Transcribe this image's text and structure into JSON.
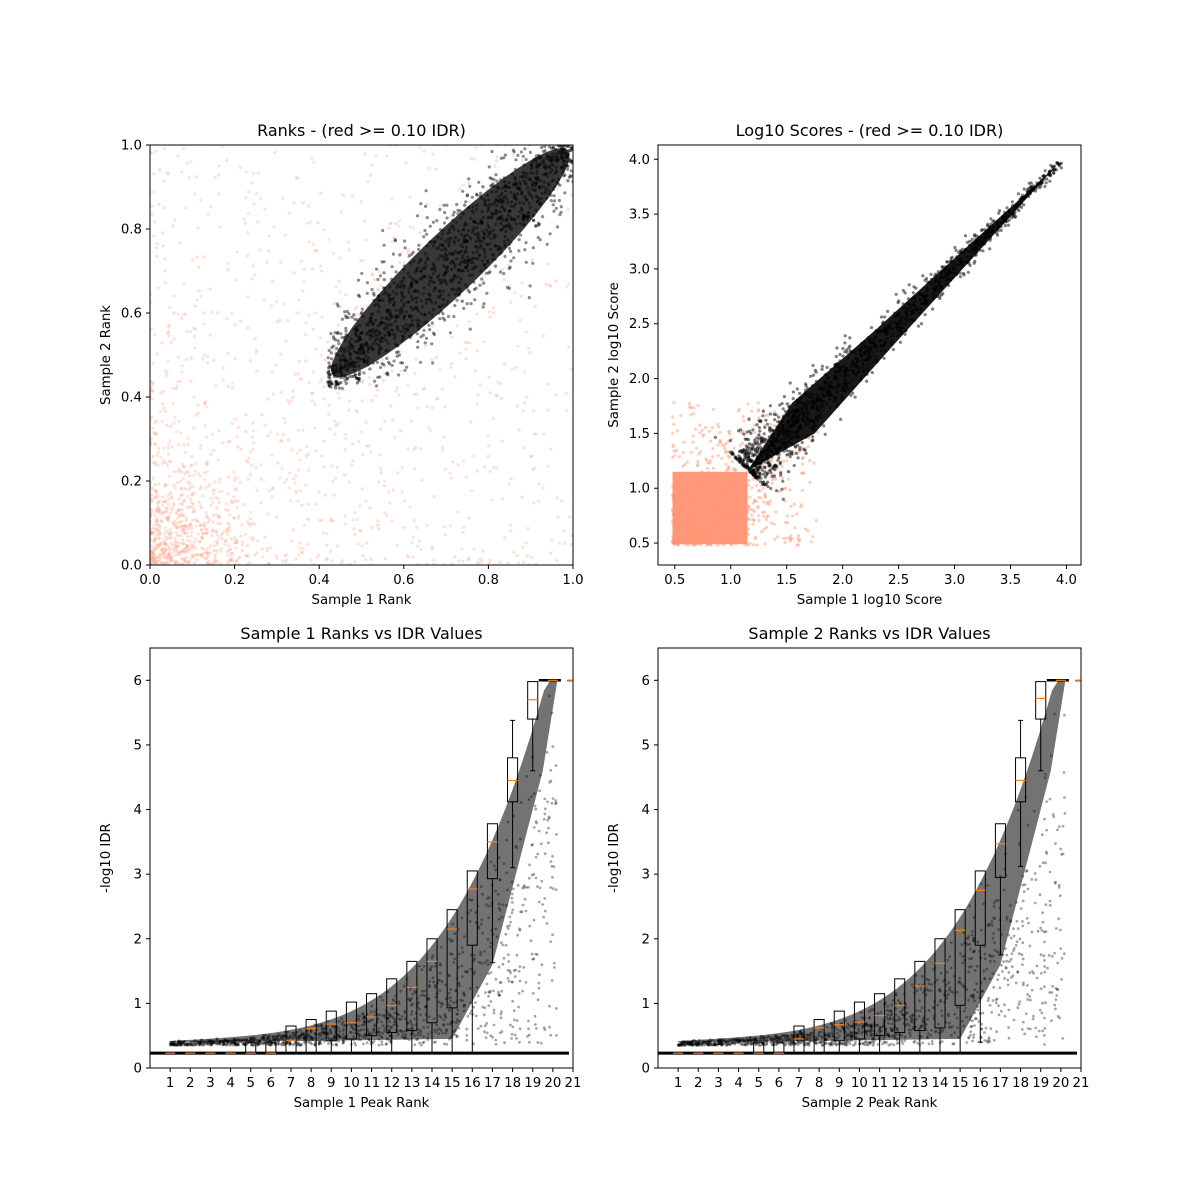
{
  "figure": {
    "background": "#ffffff"
  },
  "colors": {
    "below_threshold": "#ff9473",
    "above_threshold": "#000000",
    "median_line": "#ff7f0e",
    "box_edge": "#000000"
  },
  "chart_data": [
    {
      "type": "scatter",
      "title": "Ranks - (red >= 0.10 IDR)",
      "xlabel": "Sample 1 Rank",
      "ylabel": "Sample 2 Rank",
      "xlim": [
        0.0,
        1.0
      ],
      "ylim": [
        0.0,
        1.0
      ],
      "xticks": [
        "0.0",
        "0.2",
        "0.4",
        "0.6",
        "0.8",
        "1.0"
      ],
      "yticks": [
        "0.0",
        "0.2",
        "0.4",
        "0.6",
        "0.8",
        "1.0"
      ],
      "grid": false,
      "series": [
        {
          "group": "IDR >= 0.10",
          "color": "#ff9473",
          "description_of_shape": "dense cloud concentrated near origin, spreading over whole unit square",
          "x_center": 0.3,
          "y_center": 0.3
        },
        {
          "group": "IDR < 0.10",
          "color": "#000000",
          "ellipse": {
            "start": [
              0.43,
              0.43
            ],
            "end": [
              1.0,
              1.0
            ],
            "center": [
              0.71,
              0.72
            ],
            "semi_major": 0.42,
            "semi_minor": 0.075,
            "angle_deg": 44
          }
        }
      ]
    },
    {
      "type": "scatter",
      "title": "Log10 Scores - (red >= 0.10 IDR)",
      "xlabel": "Sample 1 log10 Score",
      "ylabel": "Sample 2 log10 Score",
      "xlim": [
        0.35,
        4.13
      ],
      "ylim": [
        0.3,
        4.13
      ],
      "xticks": [
        "0.5",
        "1.0",
        "1.5",
        "2.0",
        "2.5",
        "3.0",
        "3.5",
        "4.0"
      ],
      "yticks": [
        "0.5",
        "1.0",
        "1.5",
        "2.0",
        "2.5",
        "3.0",
        "3.5",
        "4.0"
      ],
      "grid": false,
      "series": [
        {
          "group": "IDR >= 0.10",
          "color": "#ff9473",
          "x_range": [
            0.48,
            1.9
          ],
          "y_range": [
            0.48,
            1.9
          ]
        },
        {
          "group": "IDR < 0.10",
          "color": "#000000",
          "band_start": [
            1.15,
            1.17
          ],
          "band_end": [
            3.95,
            3.96
          ]
        }
      ]
    },
    {
      "type": "box",
      "title": "Sample 1 Ranks vs IDR Values",
      "xlabel": "Sample 1 Peak Rank",
      "ylabel": "-log10 IDR",
      "xlim": [
        0,
        21
      ],
      "ylim": [
        0,
        6.5
      ],
      "xticks": [
        "1",
        "2",
        "3",
        "4",
        "5",
        "6",
        "7",
        "8",
        "9",
        "10",
        "11",
        "12",
        "13",
        "14",
        "15",
        "16",
        "17",
        "18",
        "19",
        "20",
        "21"
      ],
      "yticks": [
        "0",
        "1",
        "2",
        "3",
        "4",
        "5",
        "6"
      ],
      "grid": false,
      "boxes": [
        {
          "x": 1,
          "q1": 0.23,
          "median": 0.23,
          "q3": 0.23,
          "whisker_low": 0.23,
          "whisker_high": 0.23
        },
        {
          "x": 2,
          "q1": 0.23,
          "median": 0.23,
          "q3": 0.23,
          "whisker_low": 0.23,
          "whisker_high": 0.23
        },
        {
          "x": 3,
          "q1": 0.23,
          "median": 0.23,
          "q3": 0.23,
          "whisker_low": 0.23,
          "whisker_high": 0.23
        },
        {
          "x": 4,
          "q1": 0.23,
          "median": 0.23,
          "q3": 0.23,
          "whisker_low": 0.23,
          "whisker_high": 0.23
        },
        {
          "x": 5,
          "q1": 0.23,
          "median": 0.23,
          "q3": 0.39,
          "whisker_low": 0.23,
          "whisker_high": 0.39
        },
        {
          "x": 6,
          "q1": 0.23,
          "median": 0.23,
          "q3": 0.4,
          "whisker_low": 0.23,
          "whisker_high": 0.4
        },
        {
          "x": 7,
          "q1": 0.23,
          "median": 0.43,
          "q3": 0.65,
          "whisker_low": 0.23,
          "whisker_high": 0.65
        },
        {
          "x": 8,
          "q1": 0.23,
          "median": 0.61,
          "q3": 0.75,
          "whisker_low": 0.23,
          "whisker_high": 0.75
        },
        {
          "x": 9,
          "q1": 0.42,
          "median": 0.68,
          "q3": 0.88,
          "whisker_low": 0.23,
          "whisker_high": 0.88
        },
        {
          "x": 10,
          "q1": 0.45,
          "median": 0.7,
          "q3": 1.02,
          "whisker_low": 0.23,
          "whisker_high": 1.02
        },
        {
          "x": 11,
          "q1": 0.5,
          "median": 0.79,
          "q3": 1.15,
          "whisker_low": 0.23,
          "whisker_high": 1.15
        },
        {
          "x": 12,
          "q1": 0.55,
          "median": 0.97,
          "q3": 1.38,
          "whisker_low": 0.23,
          "whisker_high": 1.38
        },
        {
          "x": 13,
          "q1": 0.58,
          "median": 1.25,
          "q3": 1.65,
          "whisker_low": 0.23,
          "whisker_high": 1.65
        },
        {
          "x": 14,
          "q1": 0.7,
          "median": 1.65,
          "q3": 2.0,
          "whisker_low": 0.23,
          "whisker_high": 2.0
        },
        {
          "x": 15,
          "q1": 0.93,
          "median": 2.15,
          "q3": 2.45,
          "whisker_low": 0.23,
          "whisker_high": 2.45
        },
        {
          "x": 16,
          "q1": 1.9,
          "median": 2.77,
          "q3": 3.05,
          "whisker_low": 0.23,
          "whisker_high": 3.05
        },
        {
          "x": 17,
          "q1": 2.93,
          "median": 3.5,
          "q3": 3.78,
          "whisker_low": 1.63,
          "whisker_high": 3.78
        },
        {
          "x": 18,
          "q1": 4.12,
          "median": 4.45,
          "q3": 4.8,
          "whisker_low": 3.1,
          "whisker_high": 5.38
        },
        {
          "x": 19,
          "q1": 5.4,
          "median": 5.7,
          "q3": 5.98,
          "whisker_low": 4.6,
          "whisker_high": 5.98
        },
        {
          "x": 20,
          "q1": 6.0,
          "median": 6.0,
          "q3": 6.0,
          "whisker_low": 6.0,
          "whisker_high": 6.0
        },
        {
          "x": 21,
          "q1": 6.0,
          "median": 6.0,
          "q3": 6.0,
          "whisker_low": 6.0,
          "whisker_high": 6.0
        }
      ]
    },
    {
      "type": "box",
      "title": "Sample 2 Ranks vs IDR Values",
      "xlabel": "Sample 2 Peak Rank",
      "ylabel": "-log10 IDR",
      "xlim": [
        0,
        21
      ],
      "ylim": [
        0,
        6.5
      ],
      "xticks": [
        "1",
        "2",
        "3",
        "4",
        "5",
        "6",
        "7",
        "8",
        "9",
        "10",
        "11",
        "12",
        "13",
        "14",
        "15",
        "16",
        "17",
        "18",
        "19",
        "20",
        "21"
      ],
      "yticks": [
        "0",
        "1",
        "2",
        "3",
        "4",
        "5",
        "6"
      ],
      "grid": false,
      "boxes": [
        {
          "x": 1,
          "q1": 0.23,
          "median": 0.23,
          "q3": 0.23,
          "whisker_low": 0.23,
          "whisker_high": 0.23
        },
        {
          "x": 2,
          "q1": 0.23,
          "median": 0.23,
          "q3": 0.23,
          "whisker_low": 0.23,
          "whisker_high": 0.23
        },
        {
          "x": 3,
          "q1": 0.23,
          "median": 0.23,
          "q3": 0.23,
          "whisker_low": 0.23,
          "whisker_high": 0.23
        },
        {
          "x": 4,
          "q1": 0.23,
          "median": 0.23,
          "q3": 0.23,
          "whisker_low": 0.23,
          "whisker_high": 0.23
        },
        {
          "x": 5,
          "q1": 0.23,
          "median": 0.23,
          "q3": 0.39,
          "whisker_low": 0.23,
          "whisker_high": 0.39
        },
        {
          "x": 6,
          "q1": 0.23,
          "median": 0.23,
          "q3": 0.4,
          "whisker_low": 0.23,
          "whisker_high": 0.4
        },
        {
          "x": 7,
          "q1": 0.23,
          "median": 0.45,
          "q3": 0.65,
          "whisker_low": 0.23,
          "whisker_high": 0.65
        },
        {
          "x": 8,
          "q1": 0.23,
          "median": 0.62,
          "q3": 0.75,
          "whisker_low": 0.23,
          "whisker_high": 0.75
        },
        {
          "x": 9,
          "q1": 0.42,
          "median": 0.67,
          "q3": 0.88,
          "whisker_low": 0.23,
          "whisker_high": 0.88
        },
        {
          "x": 10,
          "q1": 0.45,
          "median": 0.71,
          "q3": 1.02,
          "whisker_low": 0.23,
          "whisker_high": 1.02
        },
        {
          "x": 11,
          "q1": 0.5,
          "median": 0.81,
          "q3": 1.15,
          "whisker_low": 0.23,
          "whisker_high": 1.15
        },
        {
          "x": 12,
          "q1": 0.55,
          "median": 0.97,
          "q3": 1.38,
          "whisker_low": 0.23,
          "whisker_high": 1.38
        },
        {
          "x": 13,
          "q1": 0.58,
          "median": 1.27,
          "q3": 1.65,
          "whisker_low": 0.23,
          "whisker_high": 1.65
        },
        {
          "x": 14,
          "q1": 0.62,
          "median": 1.62,
          "q3": 2.0,
          "whisker_low": 0.23,
          "whisker_high": 2.0
        },
        {
          "x": 15,
          "q1": 0.97,
          "median": 2.13,
          "q3": 2.45,
          "whisker_low": 0.23,
          "whisker_high": 2.45
        },
        {
          "x": 16,
          "q1": 1.9,
          "median": 2.75,
          "q3": 3.05,
          "whisker_low": 0.4,
          "whisker_high": 3.05
        },
        {
          "x": 17,
          "q1": 2.95,
          "median": 3.47,
          "q3": 3.78,
          "whisker_low": 1.75,
          "whisker_high": 3.78
        },
        {
          "x": 18,
          "q1": 4.12,
          "median": 4.45,
          "q3": 4.8,
          "whisker_low": 3.12,
          "whisker_high": 5.38
        },
        {
          "x": 19,
          "q1": 5.4,
          "median": 5.72,
          "q3": 5.98,
          "whisker_low": 4.6,
          "whisker_high": 5.98
        },
        {
          "x": 20,
          "q1": 6.0,
          "median": 6.0,
          "q3": 6.0,
          "whisker_low": 6.0,
          "whisker_high": 6.0
        },
        {
          "x": 21,
          "q1": 6.0,
          "median": 6.0,
          "q3": 6.0,
          "whisker_low": 6.0,
          "whisker_high": 6.0
        }
      ]
    }
  ]
}
